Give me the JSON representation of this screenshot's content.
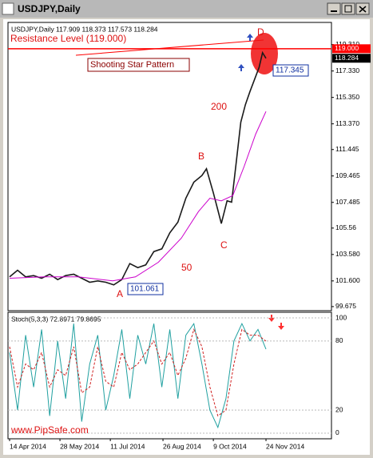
{
  "window_title": "USDJPY,Daily",
  "chart_data": {
    "type": "line",
    "header": "USDJPY,Daily  117.909 118.373 117.573 118.284",
    "xlim": [
      -1.4,
      281.2
    ],
    "xticks": [
      {
        "value": 0,
        "label": "14 Apr 2014"
      },
      {
        "value": 44,
        "label": "28 May 2014"
      },
      {
        "value": 88,
        "label": "11 Jul 2014"
      },
      {
        "value": 134,
        "label": "26 Aug 2014"
      },
      {
        "value": 178,
        "label": "9 Oct 2014"
      },
      {
        "value": 224,
        "label": "24 Nov 2014"
      }
    ],
    "ylim": [
      99.37,
      120.97
    ],
    "yticks": [
      99.675,
      {
        "value": 101.6,
        "label": "101.600"
      },
      {
        "value": 103.58,
        "label": "103.580"
      },
      105.56,
      107.485,
      109.465,
      111.445,
      {
        "value": 113.37,
        "label": "113.370"
      },
      {
        "value": 115.35,
        "label": "115.350"
      },
      {
        "value": 117.33,
        "label": "117.330"
      },
      {
        "value": 119.31,
        "label": "119.310"
      }
    ],
    "grid": false,
    "series": [
      {
        "color": "#1a1a1a",
        "x": [
          0,
          7,
          14,
          21,
          28,
          35,
          42,
          49,
          56,
          63,
          70,
          77,
          84,
          91,
          98,
          105,
          112,
          119,
          126,
          133,
          140,
          147,
          154,
          161,
          168,
          172,
          178,
          182,
          185,
          190,
          194,
          198,
          202,
          206,
          210,
          214,
          218,
          221,
          224
        ],
        "values": [
          101.9,
          102.4,
          101.9,
          102.0,
          101.8,
          102.1,
          101.7,
          102.0,
          102.1,
          101.8,
          101.5,
          101.6,
          101.5,
          101.3,
          101.7,
          102.9,
          102.6,
          102.8,
          103.8,
          104.0,
          105.2,
          106.0,
          107.8,
          109.0,
          109.5,
          110.0,
          108.2,
          106.9,
          105.9,
          107.6,
          107.5,
          110.5,
          113.5,
          114.8,
          115.8,
          116.7,
          117.6,
          118.7,
          118.284
        ]
      },
      {
        "color": "#cc00cc",
        "x": [
          0,
          30,
          60,
          90,
          110,
          130,
          150,
          165,
          175,
          185,
          195,
          205,
          215,
          224
        ],
        "values": [
          101.8,
          101.9,
          101.9,
          101.6,
          101.9,
          103.0,
          104.8,
          106.8,
          107.8,
          107.6,
          108.0,
          110.2,
          112.6,
          114.3
        ]
      }
    ],
    "price_markers": [
      {
        "value": 119.0,
        "label": "119.000",
        "color": "#ff0000"
      },
      {
        "value": 118.284,
        "label": "118.284",
        "color": "#000000"
      }
    ],
    "resistance": {
      "value": 119.0,
      "color": "#ff0000"
    },
    "annotations": [
      "Resistance Level (119.000)",
      "Shooting Star Pattern",
      "200",
      "50",
      "A",
      "B",
      "C",
      "D",
      "www.PipSafe.com"
    ],
    "boxed_labels": [
      {
        "value": 101.061,
        "label": "101.061"
      },
      {
        "value": 117.345,
        "label": "117.345"
      }
    ],
    "stochastic": {
      "title": "Stoch(5,3,3) 72.8971 79.8695",
      "ylim": [
        -4.9,
        104.9
      ],
      "yticks": [
        0,
        20,
        80,
        100
      ],
      "x": [
        0,
        7,
        14,
        21,
        28,
        35,
        42,
        49,
        56,
        63,
        70,
        77,
        84,
        91,
        98,
        105,
        112,
        119,
        126,
        133,
        140,
        147,
        154,
        161,
        168,
        175,
        182,
        189,
        196,
        203,
        210,
        217,
        224
      ],
      "main": {
        "color": "#20a0a0",
        "values": [
          70,
          20,
          85,
          40,
          90,
          15,
          80,
          30,
          95,
          10,
          60,
          85,
          20,
          50,
          90,
          30,
          85,
          60,
          95,
          40,
          90,
          30,
          85,
          95,
          60,
          20,
          5,
          30,
          80,
          95,
          80,
          90,
          72.8971
        ]
      },
      "signal": {
        "color": "#d02020",
        "values": [
          75,
          40,
          60,
          55,
          70,
          40,
          55,
          50,
          75,
          35,
          40,
          75,
          45,
          40,
          70,
          55,
          60,
          70,
          80,
          60,
          70,
          50,
          65,
          90,
          75,
          40,
          15,
          20,
          60,
          90,
          85,
          85,
          79.8695
        ]
      }
    }
  }
}
